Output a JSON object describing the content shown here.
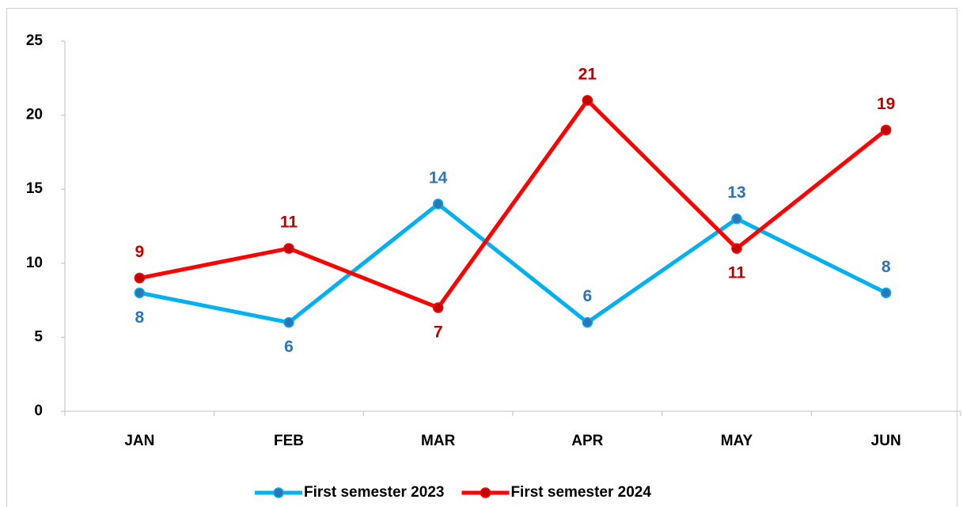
{
  "chart_data": {
    "type": "line",
    "categories": [
      "JAN",
      "FEB",
      "MAR",
      "APR",
      "MAY",
      "JUN"
    ],
    "series": [
      {
        "name": "First semester 2023",
        "color": "#00b0f0",
        "marker_color": "#2e75b6",
        "label_color": "#2e75b6",
        "values": [
          8,
          6,
          14,
          6,
          13,
          8
        ]
      },
      {
        "name": "First semester 2024",
        "color": "#ff0000",
        "marker_color": "#c00000",
        "label_color": "#c00000",
        "values": [
          9,
          11,
          7,
          21,
          11,
          19
        ]
      }
    ],
    "ylim": [
      0,
      25
    ],
    "yticks": [
      0,
      5,
      10,
      15,
      20,
      25
    ],
    "grid": false,
    "legend": "bottom"
  }
}
